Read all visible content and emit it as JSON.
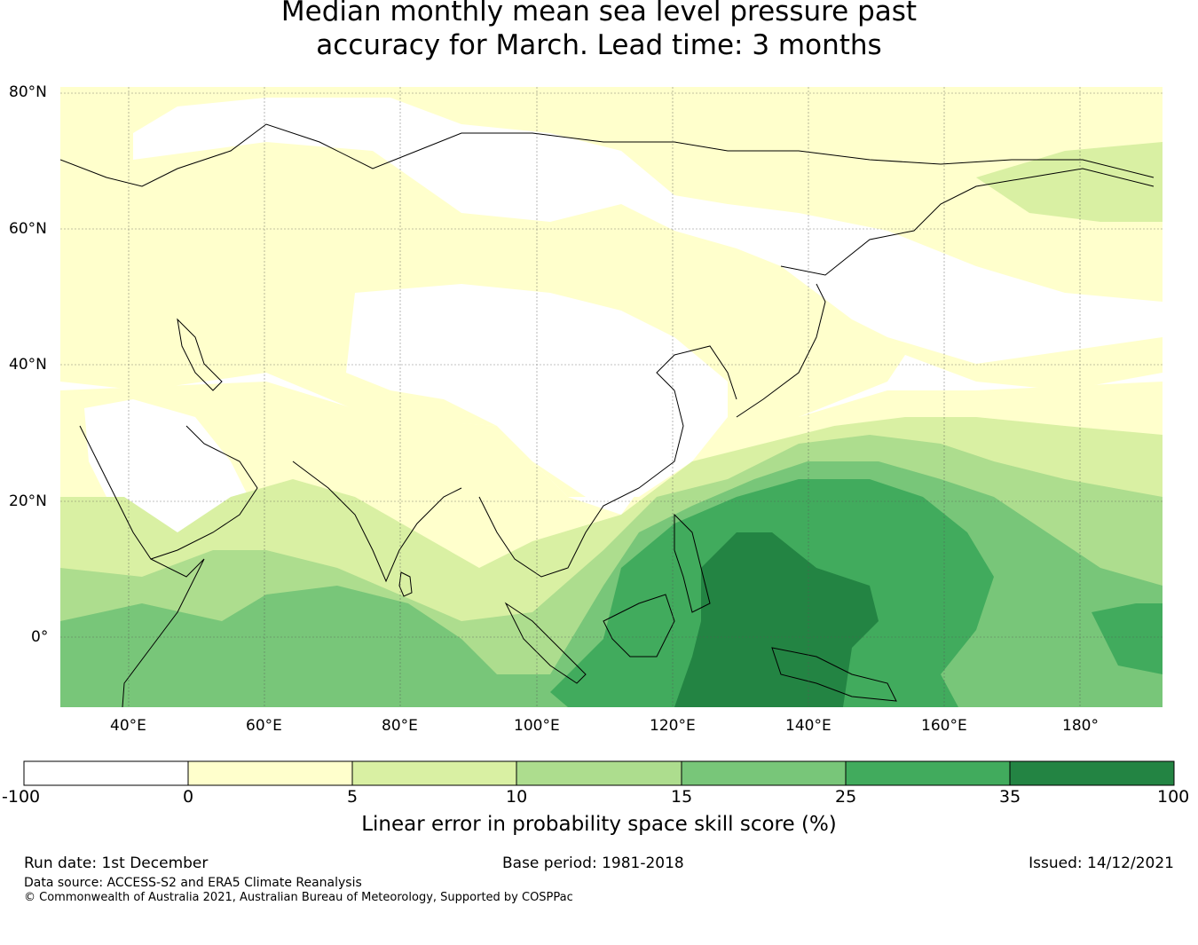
{
  "title_line1": "Median monthly mean sea level pressure past",
  "title_line2": "accuracy for March. Lead time: 3 months",
  "map": {
    "lon_range": [
      30,
      192
    ],
    "lat_range": [
      -10,
      81
    ],
    "lon_labels": [
      "40°E",
      "60°E",
      "80°E",
      "100°E",
      "120°E",
      "140°E",
      "160°E",
      "180°"
    ],
    "lat_labels": [
      "80°N",
      "60°N",
      "40°N",
      "20°N",
      "0°"
    ],
    "gridlines": true
  },
  "legend": {
    "label": "Linear error in probability space skill score (%)",
    "ticks": [
      "-100",
      "0",
      "5",
      "10",
      "15",
      "25",
      "35",
      "100"
    ],
    "colors": [
      "#ffffff",
      "#ffffcc",
      "#d9f0a3",
      "#addd8e",
      "#78c679",
      "#41ab5d",
      "#238443"
    ]
  },
  "footer": {
    "run_date": "Run date: 1st December",
    "base_period": "Base period: 1981-2018",
    "issued": "Issued: 14/12/2021",
    "data_source": "Data source: ACCESS-S2 and ERA5 Climate Reanalysis",
    "copyright": "© Commonwealth of Australia 2021, Australian Bureau of Meteorology, Supported by COSPPac"
  }
}
